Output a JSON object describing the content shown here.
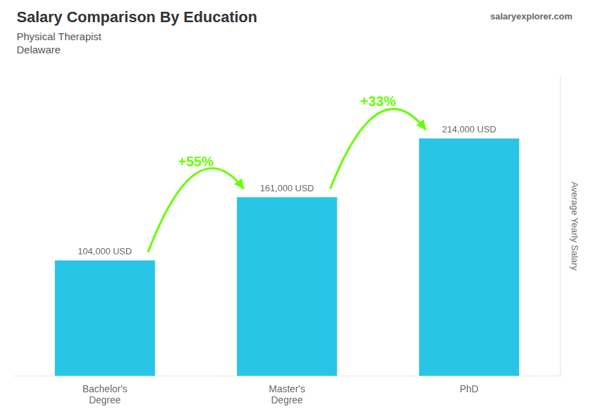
{
  "chart_data": {
    "type": "bar",
    "title": "Salary Comparison By Education",
    "subtitle": [
      "Physical Therapist",
      "Delaware"
    ],
    "ylabel": "Average Yearly Salary",
    "categories": [
      "Bachelor's\nDegree",
      "Master's\nDegree",
      "PhD"
    ],
    "values": [
      104000,
      161000,
      214000
    ],
    "value_labels": [
      "104,000 USD",
      "161,000 USD",
      "214,000 USD"
    ],
    "data_labels": true,
    "color": "#29c5e6",
    "ylim": [
      0,
      270000
    ],
    "grid": false,
    "tick_labels": "x",
    "annotations": [
      {
        "text": "+55%",
        "from": "Bachelor's\nDegree",
        "to": "Master's\nDegree",
        "color": "#66ff00"
      },
      {
        "text": "+33%",
        "from": "Master's\nDegree",
        "to": "PhD",
        "color": "#66ff00"
      },
      {
        "text": "salaryexplorer.com"
      }
    ]
  }
}
